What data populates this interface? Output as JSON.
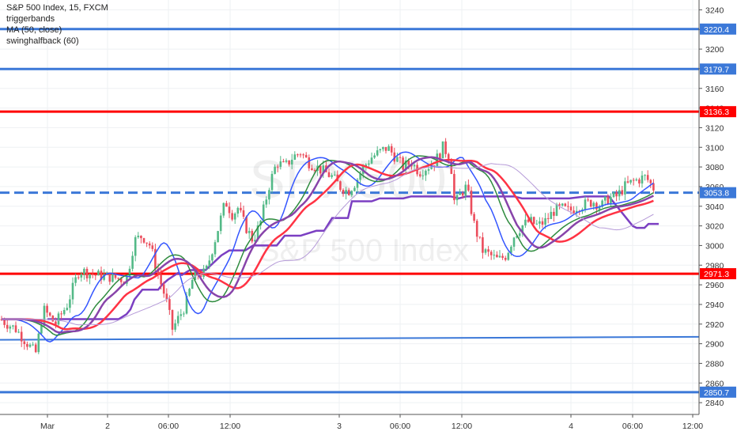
{
  "legend": {
    "title": "S&P 500 Index, 15, FXCM",
    "indicator1": "triggerbands",
    "indicator2": "MA (50, close)",
    "indicator3": "swinghalfback (60)"
  },
  "watermark": {
    "symbol": "SPX500",
    "name": "S&P 500 Index"
  },
  "chart_data": {
    "type": "candlestick",
    "title": "S&P 500 Index, 15, FXCM",
    "ylim": [
      2828,
      3250
    ],
    "xlim": [
      0,
      880
    ],
    "grid": true,
    "legend_position": "top-left",
    "y_ticks": [
      2840,
      2860,
      2880,
      2900,
      2920,
      2940,
      2960,
      2980,
      3000,
      3020,
      3040,
      3060,
      3080,
      3100,
      3120,
      3140,
      3160,
      3180,
      3200,
      3220,
      3240
    ],
    "x_ticks": [
      {
        "label": "Mar",
        "x": 60
      },
      {
        "label": "2",
        "x": 136
      },
      {
        "label": "06:00",
        "x": 213
      },
      {
        "label": "12:00",
        "x": 291
      },
      {
        "label": "3",
        "x": 429
      },
      {
        "label": "06:00",
        "x": 506
      },
      {
        "label": "12:00",
        "x": 584
      },
      {
        "label": "4",
        "x": 722
      },
      {
        "label": "06:00",
        "x": 800
      },
      {
        "label": "12:00",
        "x": 876
      }
    ],
    "levels": [
      {
        "label": "3220.4",
        "value": 3220.4,
        "color": "#3b78d8",
        "style": "solid",
        "width": 3
      },
      {
        "label": "3179.7",
        "value": 3179.7,
        "color": "#3b78d8",
        "style": "solid",
        "width": 3
      },
      {
        "label": "3136.3",
        "value": 3136.3,
        "color": "#ff0000",
        "style": "solid",
        "width": 3
      },
      {
        "label": "3053.8",
        "value": 3053.8,
        "color": "#3b78d8",
        "style": "dashed",
        "width": 3
      },
      {
        "label": "2971.3",
        "value": 2971.3,
        "color": "#ff0000",
        "style": "solid",
        "width": 3
      },
      {
        "label": "2850.7",
        "value": 2850.7,
        "color": "#3b78d8",
        "style": "solid",
        "width": 3
      }
    ],
    "trendline": {
      "x": [
        0,
        884
      ],
      "y": [
        2904,
        2907
      ],
      "color": "#3b78d8"
    },
    "close_path": {
      "x": [
        0,
        20,
        45,
        55,
        70,
        85,
        100,
        120,
        140,
        160,
        170,
        180,
        190,
        200,
        210,
        218,
        225,
        235,
        245,
        260,
        275,
        285,
        295,
        300,
        310,
        320,
        330,
        340,
        350,
        360,
        370,
        380,
        390,
        400,
        410,
        420,
        430,
        440,
        450,
        460,
        470,
        480,
        490,
        500,
        510,
        520,
        530,
        540,
        550,
        560,
        565,
        570,
        575,
        580,
        590,
        600,
        610,
        620,
        630,
        640,
        650,
        660,
        670,
        680,
        690,
        700,
        710,
        720,
        730,
        740,
        750,
        760,
        770,
        780,
        790,
        800,
        810,
        815,
        820,
        825,
        830
      ],
      "y": [
        2925,
        2915,
        2890,
        2935,
        2920,
        2940,
        2975,
        2970,
        2968,
        2965,
        3005,
        3010,
        3000,
        2970,
        2945,
        2915,
        2925,
        2940,
        2970,
        2972,
        3015,
        3045,
        3030,
        3040,
        3020,
        3005,
        3025,
        3060,
        3085,
        3080,
        3090,
        3095,
        3085,
        3080,
        3075,
        3070,
        3060,
        3055,
        3065,
        3080,
        3090,
        3095,
        3100,
        3090,
        3080,
        3085,
        3075,
        3080,
        3085,
        3100,
        3095,
        3085,
        3040,
        3050,
        3060,
        3020,
        2995,
        2990,
        2985,
        2990,
        3010,
        3020,
        3025,
        3020,
        3025,
        3035,
        3038,
        3035,
        3040,
        3042,
        3045,
        3040,
        3048,
        3050,
        3060,
        3065,
        3068,
        3070,
        3066,
        3060,
        3055
      ]
    },
    "series": [
      {
        "name": "",
        "color": "#3355ff",
        "width": 1.5,
        "smooth": 3,
        "lag": 4
      },
      {
        "name": "",
        "color": "#2e8b3e",
        "width": 1.5,
        "smooth": 5,
        "lag": 6
      },
      {
        "name": "",
        "color": "#ff3344",
        "width": 2.5,
        "smooth": 8,
        "lag": 9
      },
      {
        "name": "",
        "color": "#8844aa",
        "width": 2.5,
        "smooth": 6,
        "lag": 7
      },
      {
        "name": "MA (50, close)",
        "color": "#b59ad8",
        "width": 1,
        "smooth": 14,
        "lag": 14
      }
    ],
    "swinghalfback": {
      "color": "#7b3fc2",
      "x": [
        60,
        150,
        160,
        165,
        170,
        180,
        200,
        205,
        212,
        225,
        230,
        240,
        260,
        280,
        290,
        310,
        320,
        340,
        350,
        360,
        380,
        400,
        410,
        420,
        440,
        445,
        470,
        480,
        510,
        520,
        570,
        580,
        590,
        650,
        660,
        700,
        720,
        740,
        770,
        780,
        800,
        805,
        815,
        820,
        833
      ],
      "y": [
        2925,
        2925,
        2930,
        2935,
        2945,
        2955,
        2955,
        2960,
        2965,
        2972,
        2970,
        2975,
        2975,
        2990,
        2995,
        2995,
        3000,
        3000,
        3000,
        3010,
        3010,
        3015,
        3015,
        3028,
        3028,
        3045,
        3045,
        3048,
        3048,
        3050,
        3050,
        3048,
        3050,
        3050,
        3048,
        3048,
        3048,
        3050,
        3050,
        3040,
        3020,
        3018,
        3018,
        3022,
        3022
      ]
    }
  }
}
